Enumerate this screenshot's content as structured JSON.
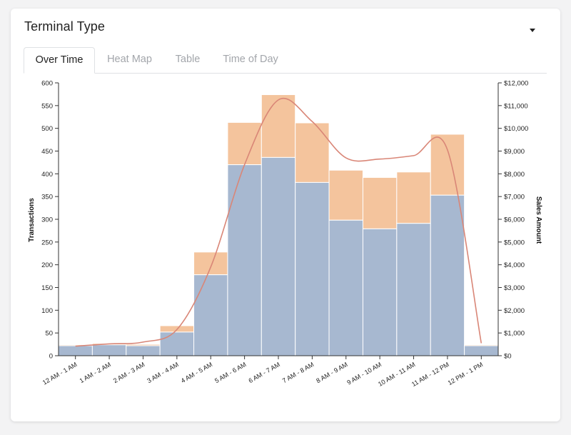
{
  "card": {
    "title": "Terminal Type",
    "tabs": [
      {
        "label": "Over Time",
        "active": true
      },
      {
        "label": "Heat Map",
        "active": false
      },
      {
        "label": "Table",
        "active": false
      },
      {
        "label": "Time of Day",
        "active": false
      }
    ]
  },
  "colors": {
    "transactions_bar": "#a7b8d0",
    "sales_bar_top": "#f4c49d",
    "sales_line": "#d98677",
    "axis": "#333333"
  },
  "chart_data": {
    "type": "bar",
    "stacked": true,
    "categories": [
      "12 AM - 1 AM",
      "1 AM - 2 AM",
      "2 AM - 3 AM",
      "3 AM - 4 AM",
      "4 AM - 5 AM",
      "5 AM - 6 AM",
      "6 AM - 7 AM",
      "7 AM - 8 AM",
      "8 AM - 9 AM",
      "9 AM - 10 AM",
      "10 AM - 11 AM",
      "11 AM - 12 PM",
      "12 PM - 1 PM"
    ],
    "series": [
      {
        "values": [
          22,
          24,
          22,
          52,
          178,
          420,
          436,
          381,
          298,
          279,
          291,
          353,
          22
        ]
      },
      {
        "values": [
          2,
          3,
          3,
          14,
          50,
          93,
          138,
          131,
          110,
          113,
          113,
          134,
          2
        ]
      }
    ],
    "line": {
      "name": "Sales Amount",
      "values": [
        420,
        520,
        600,
        1150,
        3900,
        8400,
        11250,
        10300,
        8700,
        8650,
        8800,
        9050,
        550
      ]
    },
    "ylabel": "Transactions",
    "y2label": "Sales Amount",
    "ylim": [
      0,
      600
    ],
    "y2lim": [
      0,
      12000
    ],
    "yticks": [
      "0",
      "50",
      "100",
      "150",
      "200",
      "250",
      "300",
      "350",
      "400",
      "450",
      "500",
      "550",
      "600"
    ],
    "y2ticks": [
      "$0",
      "$1,000",
      "$2,000",
      "$3,000",
      "$4,000",
      "$5,000",
      "$6,000",
      "$7,000",
      "$8,000",
      "$9,000",
      "$10,000",
      "$11,000",
      "$12,000"
    ],
    "grid": false,
    "legend": "none"
  }
}
